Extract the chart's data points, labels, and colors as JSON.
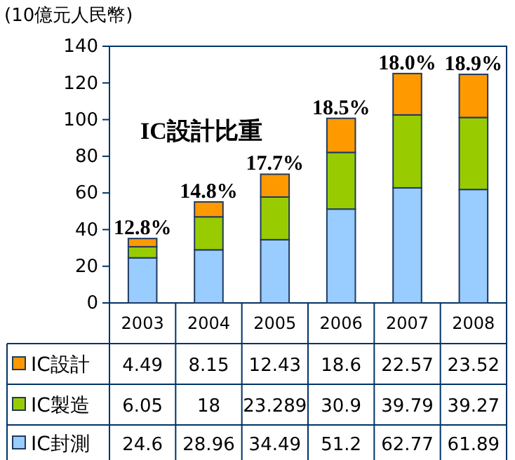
{
  "chart_data": {
    "type": "bar",
    "stacked": true,
    "ylabel": "(10億元人民幣)",
    "categories": [
      "2003",
      "2004",
      "2005",
      "2006",
      "2007",
      "2008"
    ],
    "series": [
      {
        "name": "IC封測",
        "color": "#99ccff",
        "values": [
          24.6,
          28.96,
          34.49,
          51.2,
          62.77,
          61.89
        ]
      },
      {
        "name": "IC製造",
        "color": "#99cc00",
        "values": [
          6.05,
          18,
          23.289,
          30.9,
          39.79,
          39.27
        ]
      },
      {
        "name": "IC設計",
        "color": "#ff9900",
        "values": [
          4.49,
          8.15,
          12.43,
          18.6,
          22.57,
          23.52
        ]
      }
    ],
    "ylim": [
      0,
      140
    ],
    "yticks": [
      0,
      20,
      40,
      60,
      80,
      100,
      120,
      140
    ],
    "data_labels": true,
    "legend": "bottom left",
    "grid": false,
    "annotations": [
      "IC設計比重",
      {
        "text": "12.8%",
        "x": "2003",
        "y": 35.14
      },
      {
        "text": "14.8%",
        "x": "2004",
        "y": 55.11
      },
      {
        "text": "17.7%",
        "x": "2005",
        "y": 70.209
      },
      {
        "text": "18.5%",
        "x": "2006",
        "y": 100.7
      },
      {
        "text": "18.0%",
        "x": "2007",
        "y": 125.13
      },
      {
        "text": "18.9%",
        "x": "2008",
        "y": 124.68
      }
    ]
  }
}
